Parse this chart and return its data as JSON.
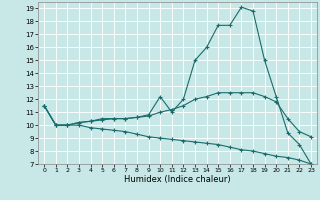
{
  "background_color": "#c8e8e8",
  "line_color": "#1a6b6b",
  "xlabel": "Humidex (Indice chaleur)",
  "ylim": [
    7,
    19.5
  ],
  "xlim": [
    -0.5,
    23.5
  ],
  "yticks": [
    7,
    8,
    9,
    10,
    11,
    12,
    13,
    14,
    15,
    16,
    17,
    18,
    19
  ],
  "xticks": [
    0,
    1,
    2,
    3,
    4,
    5,
    6,
    7,
    8,
    9,
    10,
    11,
    12,
    13,
    14,
    15,
    16,
    17,
    18,
    19,
    20,
    21,
    22,
    23
  ],
  "lines": [
    [
      11.5,
      10.0,
      10.0,
      10.2,
      10.3,
      10.5,
      10.5,
      10.5,
      10.6,
      10.8,
      12.2,
      11.0,
      12.0,
      15.0,
      16.0,
      17.7,
      17.7,
      19.1,
      18.8,
      15.0,
      12.2,
      9.4,
      8.5,
      7.0
    ],
    [
      11.5,
      10.0,
      10.0,
      10.2,
      10.3,
      10.4,
      10.5,
      10.5,
      10.6,
      10.7,
      11.0,
      11.2,
      11.5,
      12.0,
      12.2,
      12.5,
      12.5,
      12.5,
      12.5,
      12.2,
      11.8,
      10.5,
      9.5,
      9.1
    ],
    [
      11.5,
      10.0,
      10.0,
      10.0,
      9.8,
      9.7,
      9.6,
      9.5,
      9.3,
      9.1,
      9.0,
      8.9,
      8.8,
      8.7,
      8.6,
      8.5,
      8.3,
      8.1,
      8.0,
      7.8,
      7.6,
      7.5,
      7.3,
      7.0
    ]
  ]
}
